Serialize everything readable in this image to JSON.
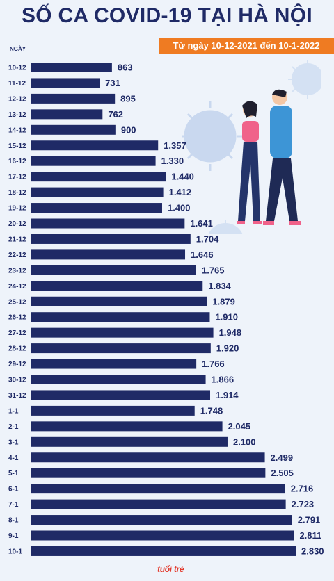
{
  "header": {
    "title": "SỐ CA COVID-19 TẠI HÀ NỘI",
    "subtitle": "Từ ngày 10-12-2021 đến 10-1-2022"
  },
  "brand": {
    "name": "tuổi trẻ"
  },
  "colors": {
    "bar": "#1f2a66",
    "accent": "#ef7b22",
    "background": "#eef3fa",
    "brand": "#e23b2e"
  },
  "chart_data": {
    "type": "bar",
    "orientation": "horizontal",
    "ylabel": "NGÀY",
    "categories": [
      "10-12",
      "11-12",
      "12-12",
      "13-12",
      "14-12",
      "15-12",
      "16-12",
      "17-12",
      "18-12",
      "19-12",
      "20-12",
      "21-12",
      "22-12",
      "23-12",
      "24-12",
      "25-12",
      "26-12",
      "27-12",
      "28-12",
      "29-12",
      "30-12",
      "31-12",
      "1-1",
      "2-1",
      "3-1",
      "4-1",
      "5-1",
      "6-1",
      "7-1",
      "8-1",
      "9-1",
      "10-1"
    ],
    "values": [
      863,
      731,
      895,
      762,
      900,
      1357,
      1330,
      1440,
      1412,
      1400,
      1641,
      1704,
      1646,
      1765,
      1834,
      1879,
      1910,
      1948,
      1920,
      1766,
      1866,
      1914,
      1748,
      2045,
      2100,
      2499,
      2505,
      2716,
      2723,
      2791,
      2811,
      2830
    ],
    "value_labels": [
      "863",
      "731",
      "895",
      "762",
      "900",
      "1.357",
      "1.330",
      "1.440",
      "1.412",
      "1.400",
      "1.641",
      "1.704",
      "1.646",
      "1.765",
      "1.834",
      "1.879",
      "1.910",
      "1.948",
      "1.920",
      "1.766",
      "1.866",
      "1.914",
      "1.748",
      "2.045",
      "2.100",
      "2.499",
      "2.505",
      "2.716",
      "2.723",
      "2.791",
      "2.811",
      "2.830"
    ],
    "grid": false,
    "legend": "none"
  }
}
